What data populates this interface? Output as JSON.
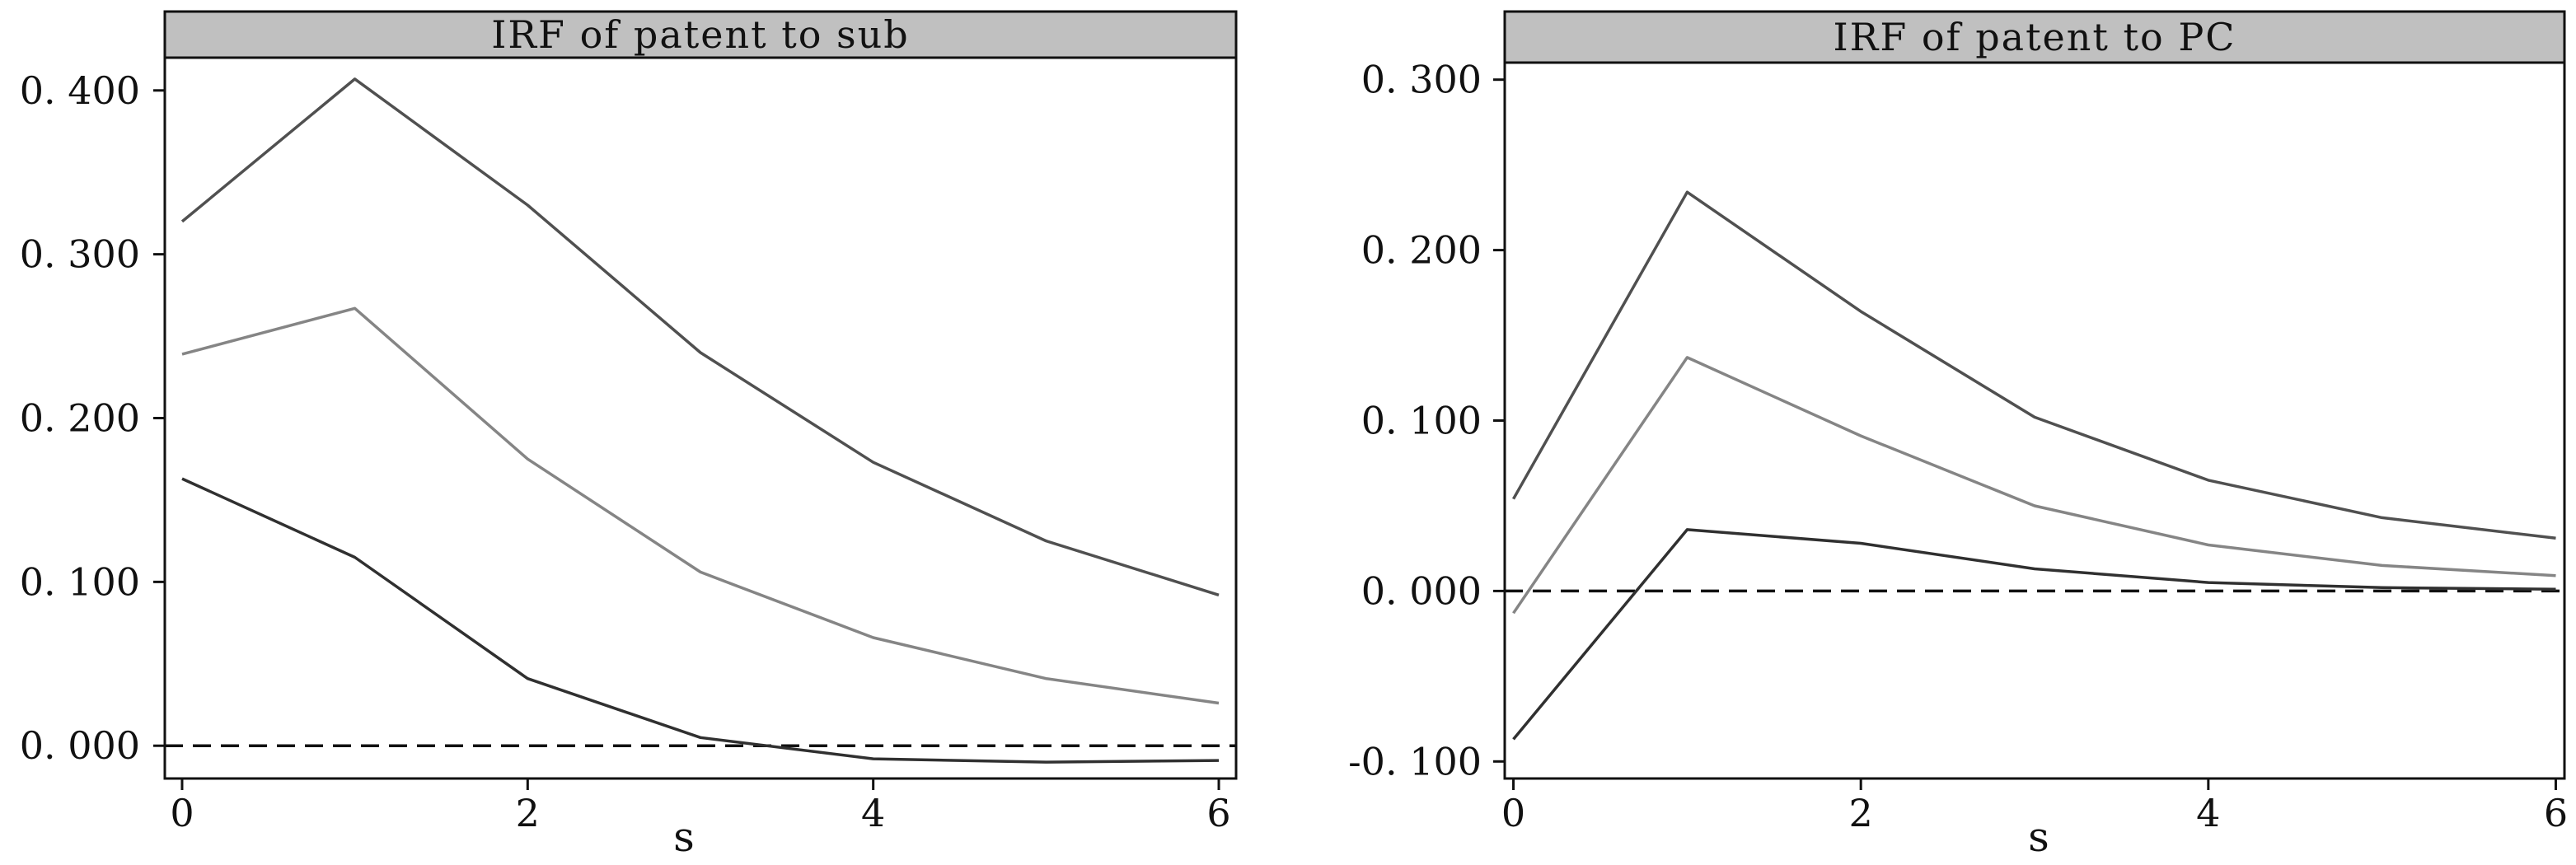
{
  "chart_data": [
    {
      "type": "line",
      "title": "IRF of patent to sub",
      "xlabel": "s",
      "x": [
        0,
        1,
        2,
        3,
        4,
        5,
        6
      ],
      "xticks": [
        0,
        2,
        4,
        6
      ],
      "xtick_labels": [
        "0",
        "2",
        "4",
        "6"
      ],
      "xlim": [
        -0.1,
        6.1
      ],
      "ylim": [
        -0.02,
        0.42
      ],
      "yticks": [
        0.0,
        0.1,
        0.2,
        0.3,
        0.4
      ],
      "ytick_labels": [
        "0. 000",
        "0. 100",
        "0. 200",
        "0. 300",
        "0. 400"
      ],
      "grid": false,
      "zero_line": "dashed",
      "series": [
        {
          "values": [
            0.32,
            0.407,
            0.33,
            0.24,
            0.173,
            0.125,
            0.092
          ],
          "color": "#505050"
        },
        {
          "values": [
            0.239,
            0.267,
            0.175,
            0.106,
            0.066,
            0.041,
            0.026
          ],
          "color": "#858585"
        },
        {
          "values": [
            0.163,
            0.115,
            0.041,
            0.005,
            -0.008,
            -0.01,
            -0.009
          ],
          "color": "#303030"
        }
      ]
    },
    {
      "type": "line",
      "title": "IRF of patent to PC",
      "xlabel": "s",
      "x": [
        0,
        1,
        2,
        3,
        4,
        5,
        6
      ],
      "xticks": [
        0,
        2,
        4,
        6
      ],
      "xtick_labels": [
        "0",
        "2",
        "4",
        "6"
      ],
      "xlim": [
        -0.05,
        6.05
      ],
      "ylim": [
        -0.11,
        0.31
      ],
      "yticks": [
        -0.1,
        0.0,
        0.1,
        0.2,
        0.3
      ],
      "ytick_labels": [
        "-0. 100",
        "0. 000",
        "0. 100",
        "0. 200",
        "0. 300"
      ],
      "grid": false,
      "zero_line": "dashed",
      "series": [
        {
          "values": [
            0.054,
            0.234,
            0.164,
            0.102,
            0.065,
            0.043,
            0.031
          ],
          "color": "#505050"
        },
        {
          "values": [
            -0.013,
            0.137,
            0.091,
            0.05,
            0.027,
            0.015,
            0.009
          ],
          "color": "#858585"
        },
        {
          "values": [
            -0.087,
            0.036,
            0.028,
            0.013,
            0.005,
            0.002,
            0.001
          ],
          "color": "#303030"
        }
      ]
    }
  ]
}
